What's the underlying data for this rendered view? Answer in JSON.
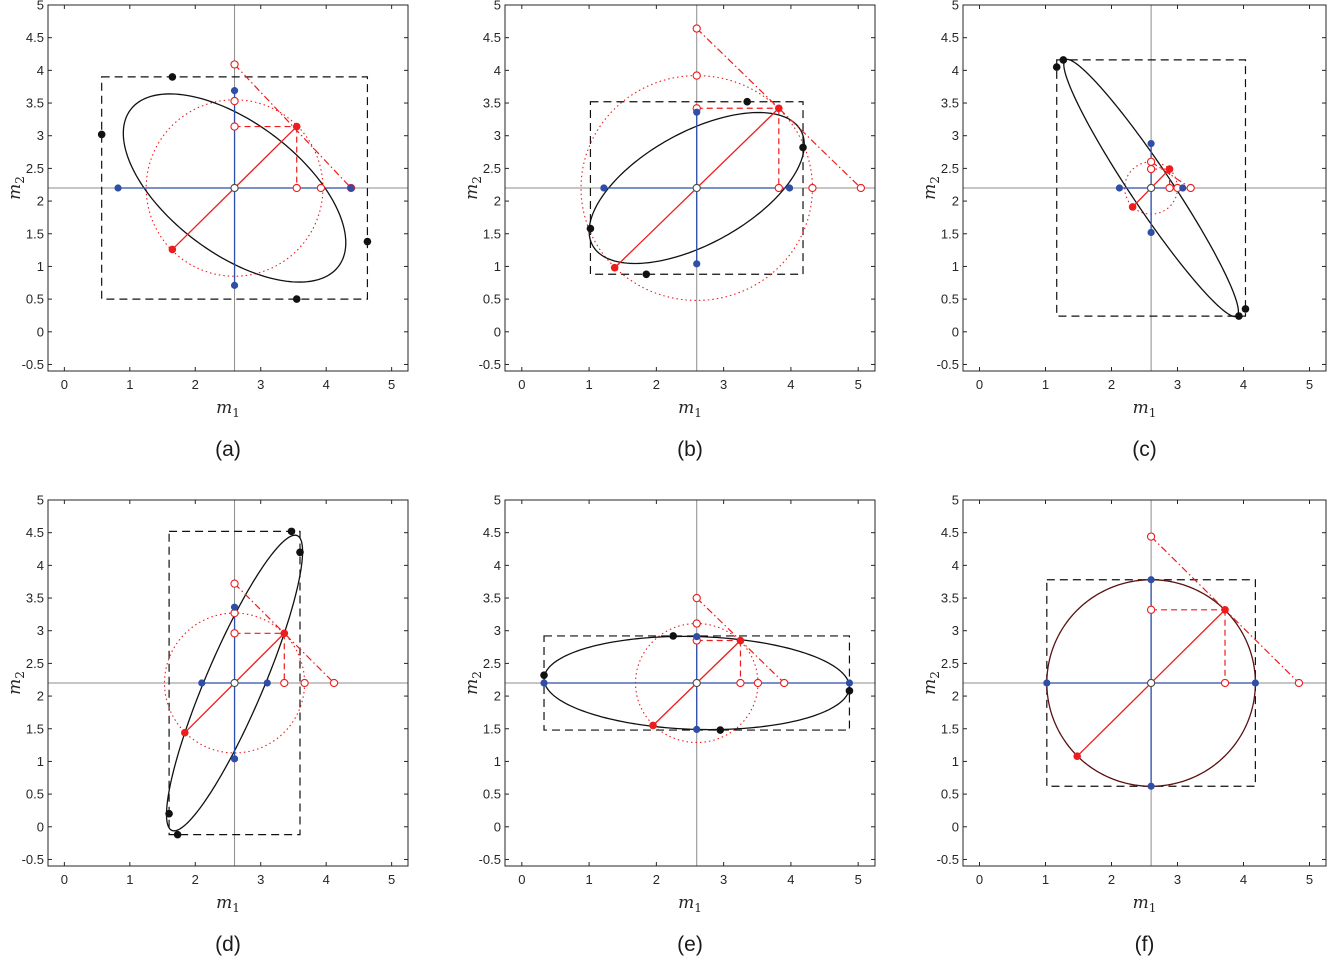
{
  "chart_data": [
    {
      "type": "scatter",
      "panel_label": "(a)",
      "xlabel": "m",
      "xlabel_sub": "1",
      "ylabel": "m",
      "ylabel_sub": "2",
      "xlim": [
        -0.25,
        5.25
      ],
      "ylim": [
        -0.6,
        5.0
      ],
      "xticks": [
        0,
        1,
        2,
        3,
        4,
        5
      ],
      "yticks": [
        -0.5,
        0,
        0.5,
        1,
        1.5,
        2,
        2.5,
        3,
        3.5,
        4,
        4.5,
        5
      ],
      "grid": false,
      "center": [
        2.6,
        2.2
      ],
      "ellipse": {
        "rx": 1.99,
        "ry": 1.0,
        "angle_deg": -37
      },
      "bounding_box": [
        0.57,
        0.5,
        4.63,
        3.9
      ],
      "circle_radius": 1.35,
      "black_points": [
        [
          1.65,
          3.9
        ],
        [
          0.57,
          3.02
        ],
        [
          4.63,
          1.38
        ],
        [
          3.55,
          0.5
        ]
      ],
      "blue_points": [
        [
          0.82,
          2.2
        ],
        [
          4.38,
          2.2
        ],
        [
          2.6,
          3.69
        ],
        [
          2.6,
          0.71
        ]
      ],
      "red_points": [
        [
          3.55,
          3.14
        ],
        [
          1.65,
          1.26
        ]
      ],
      "red_open_points": [
        [
          2.6,
          4.09
        ],
        [
          2.6,
          3.53
        ],
        [
          2.6,
          3.14
        ],
        [
          3.55,
          2.2
        ],
        [
          3.92,
          2.2
        ],
        [
          4.38,
          2.2
        ]
      ]
    },
    {
      "type": "scatter",
      "panel_label": "(b)",
      "xlabel": "m",
      "xlabel_sub": "1",
      "ylabel": "m",
      "ylabel_sub": "2",
      "xlim": [
        -0.25,
        5.25
      ],
      "ylim": [
        -0.6,
        5.0
      ],
      "xticks": [
        0,
        1,
        2,
        3,
        4,
        5
      ],
      "yticks": [
        -0.5,
        0,
        0.5,
        1,
        1.5,
        2,
        2.5,
        3,
        3.5,
        4,
        4.5,
        5
      ],
      "grid": false,
      "center": [
        2.6,
        2.2
      ],
      "ellipse": {
        "rx": 1.78,
        "ry": 0.85,
        "angle_deg": 30
      },
      "bounding_box": [
        1.02,
        0.88,
        4.18,
        3.52
      ],
      "circle_radius": 1.72,
      "black_points": [
        [
          3.35,
          3.52
        ],
        [
          4.18,
          2.82
        ],
        [
          1.02,
          1.58
        ],
        [
          1.85,
          0.88
        ]
      ],
      "blue_points": [
        [
          1.22,
          2.2
        ],
        [
          3.98,
          2.2
        ],
        [
          2.6,
          3.36
        ],
        [
          2.6,
          1.04
        ]
      ],
      "red_points": [
        [
          3.82,
          3.42
        ],
        [
          1.38,
          0.98
        ]
      ],
      "red_open_points": [
        [
          2.6,
          4.64
        ],
        [
          2.6,
          3.92
        ],
        [
          2.6,
          3.42
        ],
        [
          3.82,
          2.2
        ],
        [
          4.32,
          2.2
        ],
        [
          5.04,
          2.2
        ]
      ]
    },
    {
      "type": "scatter",
      "panel_label": "(c)",
      "xlabel": "m",
      "xlabel_sub": "1",
      "ylabel": "m",
      "ylabel_sub": "2",
      "xlim": [
        -0.25,
        5.25
      ],
      "ylim": [
        -0.6,
        5.0
      ],
      "xticks": [
        0,
        1,
        2,
        3,
        4,
        5
      ],
      "yticks": [
        -0.5,
        0,
        0.5,
        1,
        1.5,
        2,
        2.5,
        3,
        3.5,
        4,
        4.5,
        5
      ],
      "grid": false,
      "center": [
        2.6,
        2.2
      ],
      "ellipse": {
        "rx": 2.35,
        "ry": 0.31,
        "angle_deg": -56.5
      },
      "bounding_box": [
        1.17,
        0.24,
        4.03,
        4.16
      ],
      "circle_radius": 0.4,
      "black_points": [
        [
          1.17,
          4.05
        ],
        [
          1.27,
          4.16
        ],
        [
          4.03,
          0.35
        ],
        [
          3.93,
          0.24
        ]
      ],
      "blue_points": [
        [
          2.12,
          2.2
        ],
        [
          3.08,
          2.2
        ],
        [
          2.6,
          2.88
        ],
        [
          2.6,
          1.52
        ]
      ],
      "red_points": [
        [
          2.88,
          2.49
        ],
        [
          2.32,
          1.91
        ]
      ],
      "red_open_points": [
        [
          2.6,
          2.6
        ],
        [
          2.6,
          2.49
        ],
        [
          2.88,
          2.2
        ],
        [
          3.0,
          2.2
        ],
        [
          3.2,
          2.2
        ]
      ]
    },
    {
      "type": "scatter",
      "panel_label": "(d)",
      "xlabel": "m",
      "xlabel_sub": "1",
      "ylabel": "m",
      "ylabel_sub": "2",
      "xlim": [
        -0.25,
        5.25
      ],
      "ylim": [
        -0.6,
        5.0
      ],
      "xticks": [
        0,
        1,
        2,
        3,
        4,
        5
      ],
      "yticks": [
        -0.5,
        0,
        0.5,
        1,
        1.5,
        2,
        2.5,
        3,
        3.5,
        4,
        4.5,
        5
      ],
      "grid": false,
      "center": [
        2.6,
        2.2
      ],
      "ellipse": {
        "rx": 2.45,
        "ry": 0.44,
        "angle_deg": 67
      },
      "bounding_box": [
        1.6,
        -0.12,
        3.6,
        4.52
      ],
      "circle_radius": 1.07,
      "black_points": [
        [
          3.47,
          4.52
        ],
        [
          3.6,
          4.2
        ],
        [
          1.6,
          0.2
        ],
        [
          1.73,
          -0.12
        ]
      ],
      "blue_points": [
        [
          2.1,
          2.2
        ],
        [
          3.1,
          2.2
        ],
        [
          2.6,
          3.36
        ],
        [
          2.6,
          1.04
        ]
      ],
      "red_points": [
        [
          3.36,
          2.96
        ],
        [
          1.84,
          1.44
        ]
      ],
      "red_open_points": [
        [
          2.6,
          3.72
        ],
        [
          2.6,
          3.27
        ],
        [
          2.6,
          2.96
        ],
        [
          3.36,
          2.2
        ],
        [
          3.67,
          2.2
        ],
        [
          4.12,
          2.2
        ]
      ]
    },
    {
      "type": "scatter",
      "panel_label": "(e)",
      "xlabel": "m",
      "xlabel_sub": "1",
      "ylabel": "m",
      "ylabel_sub": "2",
      "xlim": [
        -0.25,
        5.25
      ],
      "ylim": [
        -0.6,
        5.0
      ],
      "xticks": [
        0,
        1,
        2,
        3,
        4,
        5
      ],
      "yticks": [
        -0.5,
        0,
        0.5,
        1,
        1.5,
        2,
        2.5,
        3,
        3.5,
        4,
        4.5,
        5
      ],
      "grid": false,
      "center": [
        2.6,
        2.2
      ],
      "ellipse": {
        "rx": 2.27,
        "ry": 0.71,
        "angle_deg": -1.7
      },
      "bounding_box": [
        0.33,
        1.48,
        4.87,
        2.92
      ],
      "circle_radius": 0.91,
      "black_points": [
        [
          2.25,
          2.92
        ],
        [
          4.87,
          2.08
        ],
        [
          0.33,
          2.32
        ],
        [
          2.95,
          1.48
        ]
      ],
      "blue_points": [
        [
          0.33,
          2.2
        ],
        [
          4.87,
          2.2
        ],
        [
          2.6,
          2.91
        ],
        [
          2.6,
          1.49
        ]
      ],
      "red_points": [
        [
          3.25,
          2.85
        ],
        [
          1.95,
          1.55
        ]
      ],
      "red_open_points": [
        [
          2.6,
          3.5
        ],
        [
          2.6,
          3.11
        ],
        [
          2.6,
          2.85
        ],
        [
          3.25,
          2.2
        ],
        [
          3.51,
          2.2
        ],
        [
          3.9,
          2.2
        ]
      ]
    },
    {
      "type": "scatter",
      "panel_label": "(f)",
      "xlabel": "m",
      "xlabel_sub": "1",
      "ylabel": "m",
      "ylabel_sub": "2",
      "xlim": [
        -0.25,
        5.25
      ],
      "ylim": [
        -0.6,
        5.0
      ],
      "xticks": [
        0,
        1,
        2,
        3,
        4,
        5
      ],
      "yticks": [
        -0.5,
        0,
        0.5,
        1,
        1.5,
        2,
        2.5,
        3,
        3.5,
        4,
        4.5,
        5
      ],
      "grid": false,
      "center": [
        2.6,
        2.2
      ],
      "ellipse": {
        "rx": 1.58,
        "ry": 1.58,
        "angle_deg": 0
      },
      "bounding_box": [
        1.02,
        0.62,
        4.18,
        3.78
      ],
      "circle_radius": 1.58,
      "black_points": [],
      "blue_points": [
        [
          1.02,
          2.2
        ],
        [
          4.18,
          2.2
        ],
        [
          2.6,
          3.78
        ],
        [
          2.6,
          0.62
        ]
      ],
      "red_points": [
        [
          3.72,
          3.32
        ],
        [
          1.48,
          1.08
        ]
      ],
      "red_open_points": [
        [
          2.6,
          4.44
        ],
        [
          2.6,
          3.32
        ],
        [
          3.72,
          2.2
        ],
        [
          4.84,
          2.2
        ]
      ]
    }
  ]
}
